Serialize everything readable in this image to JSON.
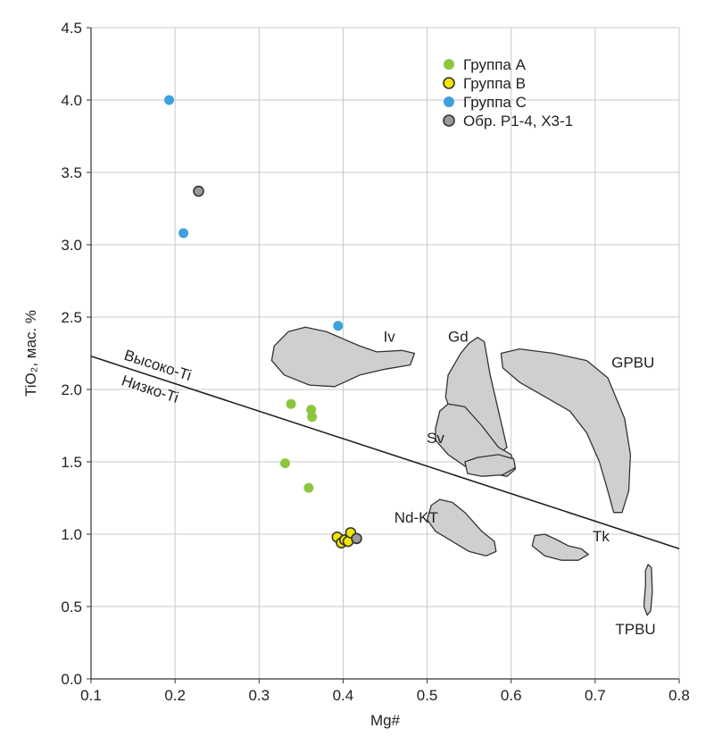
{
  "chart_data": {
    "type": "scatter",
    "xlabel": "Mg#",
    "ylabel": "TiO₂, мас. %",
    "xlim": [
      0.1,
      0.8
    ],
    "ylim": [
      0.0,
      4.5
    ],
    "x_ticks": [
      "0.1",
      "0.2",
      "0.3",
      "0.4",
      "0.5",
      "0.6",
      "0.7",
      "0.8"
    ],
    "y_ticks": [
      "0.0",
      "0.5",
      "1.0",
      "1.5",
      "2.0",
      "2.5",
      "3.0",
      "3.5",
      "4.0",
      "4.5"
    ],
    "grid": true,
    "legend_position": "top-right",
    "series": [
      {
        "name": "Группа А",
        "color": "#8cc63f",
        "edge": "#8cc63f",
        "points": [
          [
            0.338,
            1.9
          ],
          [
            0.362,
            1.86
          ],
          [
            0.363,
            1.81
          ],
          [
            0.331,
            1.49
          ],
          [
            0.359,
            1.32
          ]
        ]
      },
      {
        "name": "Группа В",
        "color": "#f2e600",
        "edge": "#333333",
        "points": [
          [
            0.393,
            0.98
          ],
          [
            0.398,
            0.94
          ],
          [
            0.402,
            0.96
          ],
          [
            0.406,
            0.95
          ],
          [
            0.409,
            1.01
          ]
        ]
      },
      {
        "name": "Группа С",
        "color": "#3ea1dc",
        "edge": "#3ea1dc",
        "points": [
          [
            0.193,
            4.0
          ],
          [
            0.21,
            3.08
          ],
          [
            0.394,
            2.44
          ]
        ]
      },
      {
        "name": "Обр. Р1-4, Х3-1",
        "color": "#9a9a9a",
        "edge": "#333333",
        "points": [
          [
            0.228,
            3.37
          ],
          [
            0.416,
            0.97
          ]
        ]
      }
    ],
    "divider": {
      "from": [
        0.1,
        2.23
      ],
      "to": [
        0.8,
        0.9
      ],
      "label_above": "Высоко-Ti",
      "label_below": "Низко-Ti"
    },
    "fields": [
      {
        "name": "Iv",
        "label": "Iv",
        "label_at": [
          0.455,
          2.33
        ],
        "outline": [
          [
            0.315,
            2.2
          ],
          [
            0.318,
            2.3
          ],
          [
            0.335,
            2.4
          ],
          [
            0.355,
            2.43
          ],
          [
            0.38,
            2.4
          ],
          [
            0.4,
            2.35
          ],
          [
            0.42,
            2.3
          ],
          [
            0.44,
            2.26
          ],
          [
            0.47,
            2.27
          ],
          [
            0.485,
            2.25
          ],
          [
            0.48,
            2.17
          ],
          [
            0.45,
            2.14
          ],
          [
            0.42,
            2.1
          ],
          [
            0.39,
            2.02
          ],
          [
            0.36,
            2.03
          ],
          [
            0.33,
            2.1
          ]
        ]
      },
      {
        "name": "Gd",
        "label": "Gd",
        "label_at": [
          0.537,
          2.33
        ],
        "outline": [
          [
            0.545,
            1.65
          ],
          [
            0.53,
            1.8
          ],
          [
            0.522,
            1.95
          ],
          [
            0.525,
            2.1
          ],
          [
            0.54,
            2.25
          ],
          [
            0.55,
            2.32
          ],
          [
            0.56,
            2.36
          ],
          [
            0.568,
            2.33
          ],
          [
            0.575,
            2.1
          ],
          [
            0.585,
            1.85
          ],
          [
            0.595,
            1.6
          ],
          [
            0.585,
            1.55
          ],
          [
            0.565,
            1.58
          ]
        ]
      },
      {
        "name": "Sv",
        "label": "Sv",
        "label_at": [
          0.51,
          1.63
        ],
        "outline": [
          [
            0.51,
            1.73
          ],
          [
            0.515,
            1.85
          ],
          [
            0.525,
            1.9
          ],
          [
            0.545,
            1.88
          ],
          [
            0.565,
            1.75
          ],
          [
            0.585,
            1.6
          ],
          [
            0.6,
            1.55
          ],
          [
            0.605,
            1.45
          ],
          [
            0.595,
            1.4
          ],
          [
            0.575,
            1.42
          ],
          [
            0.55,
            1.45
          ],
          [
            0.525,
            1.55
          ],
          [
            0.51,
            1.65
          ]
        ]
      },
      {
        "name": "Sv-lower",
        "label": "",
        "label_at": [
          0,
          0
        ],
        "outline": [
          [
            0.545,
            1.5
          ],
          [
            0.548,
            1.42
          ],
          [
            0.565,
            1.4
          ],
          [
            0.59,
            1.41
          ],
          [
            0.605,
            1.46
          ],
          [
            0.603,
            1.52
          ],
          [
            0.585,
            1.55
          ],
          [
            0.56,
            1.53
          ]
        ]
      },
      {
        "name": "GPBU",
        "label": "GPBU",
        "label_at": [
          0.745,
          2.15
        ],
        "outline": [
          [
            0.59,
            2.15
          ],
          [
            0.588,
            2.25
          ],
          [
            0.61,
            2.28
          ],
          [
            0.65,
            2.25
          ],
          [
            0.69,
            2.2
          ],
          [
            0.715,
            2.08
          ],
          [
            0.735,
            1.8
          ],
          [
            0.742,
            1.55
          ],
          [
            0.74,
            1.3
          ],
          [
            0.732,
            1.15
          ],
          [
            0.722,
            1.15
          ],
          [
            0.715,
            1.3
          ],
          [
            0.705,
            1.5
          ],
          [
            0.69,
            1.7
          ],
          [
            0.67,
            1.85
          ],
          [
            0.64,
            1.95
          ],
          [
            0.61,
            2.05
          ]
        ]
      },
      {
        "name": "Nd-KT",
        "label": "Nd-KT",
        "label_at": [
          0.487,
          1.08
        ],
        "outline": [
          [
            0.5,
            1.1
          ],
          [
            0.505,
            1.2
          ],
          [
            0.515,
            1.24
          ],
          [
            0.53,
            1.22
          ],
          [
            0.545,
            1.15
          ],
          [
            0.565,
            1.02
          ],
          [
            0.58,
            0.95
          ],
          [
            0.582,
            0.88
          ],
          [
            0.57,
            0.85
          ],
          [
            0.55,
            0.88
          ],
          [
            0.53,
            0.95
          ],
          [
            0.51,
            1.02
          ]
        ]
      },
      {
        "name": "Tk",
        "label": "Tk",
        "label_at": [
          0.707,
          0.95
        ],
        "outline": [
          [
            0.625,
            0.92
          ],
          [
            0.628,
            0.99
          ],
          [
            0.64,
            1.0
          ],
          [
            0.655,
            0.96
          ],
          [
            0.668,
            0.92
          ],
          [
            0.683,
            0.9
          ],
          [
            0.692,
            0.86
          ],
          [
            0.68,
            0.82
          ],
          [
            0.66,
            0.82
          ],
          [
            0.64,
            0.85
          ]
        ]
      },
      {
        "name": "TPBU",
        "label": "TPBU",
        "label_at": [
          0.748,
          0.31
        ],
        "outline": [
          [
            0.76,
            0.65
          ],
          [
            0.76,
            0.75
          ],
          [
            0.763,
            0.79
          ],
          [
            0.767,
            0.77
          ],
          [
            0.768,
            0.6
          ],
          [
            0.766,
            0.47
          ],
          [
            0.762,
            0.44
          ],
          [
            0.758,
            0.5
          ],
          [
            0.759,
            0.58
          ]
        ]
      }
    ]
  }
}
